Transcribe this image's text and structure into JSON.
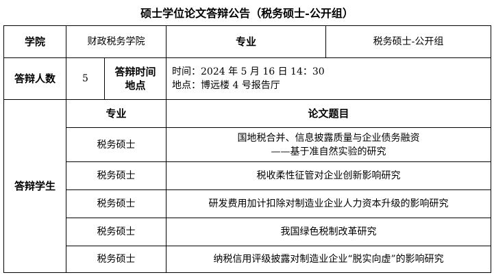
{
  "title": "硕士学位论文答辩公告（税务硕士-公开组）",
  "header": {
    "college_label": "学院",
    "college": "财政税务学院",
    "major_label": "专业",
    "major": "税务硕士-公开组"
  },
  "info": {
    "count_label": "答辩人数",
    "count": "5",
    "time_place_label_1": "答辩时间",
    "time_place_label_2": "地点",
    "time": "时间：2024 年 5 月 16 日 14：30",
    "place": "地点：博远楼 4 号报告厅"
  },
  "students": {
    "label": "答辩学生",
    "col_major": "专业",
    "col_title": "论文题目",
    "rows": [
      {
        "major": "税务硕士",
        "title": "国地税合并、信息披露质量与企业债务融资",
        "title2": "——基于准自然实验的研究"
      },
      {
        "major": "税务硕士",
        "title": "税收柔性征管对企业创新影响研究"
      },
      {
        "major": "税务硕士",
        "title": "研发费用加计扣除对制造业企业人力资本升级的影响研究"
      },
      {
        "major": "税务硕士",
        "title": "我国绿色税制改革研究"
      },
      {
        "major": "税务硕士",
        "title": "纳税信用评级披露对制造业企业“脱实向虚”的影响研究"
      }
    ]
  }
}
